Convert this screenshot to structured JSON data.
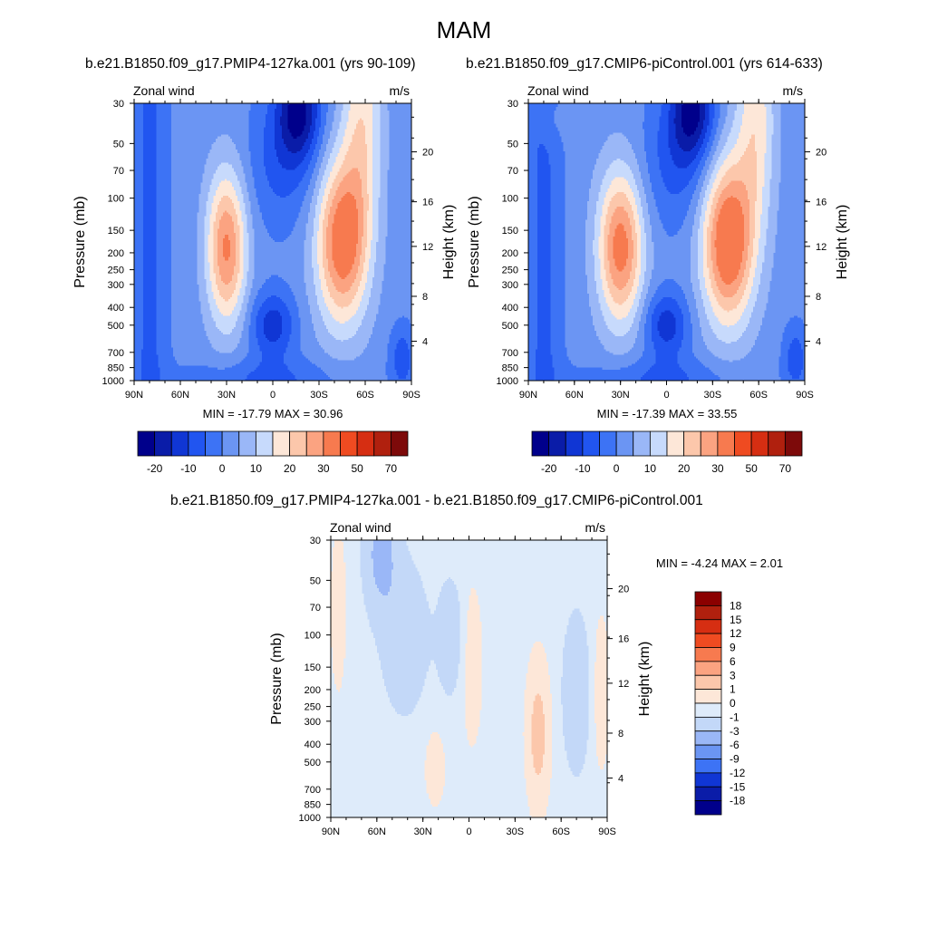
{
  "figure": {
    "season": "MAM"
  },
  "chart_data": [
    {
      "type": "heatmap",
      "title": "b.e21.B1850.f09_g17.PMIP4-127ka.001 (yrs 90-109)",
      "left_label": "Zonal wind",
      "right_label": "m/s",
      "ylabel": "Pressure (mb)",
      "y2label": "Height (km)",
      "x_ticks": [
        "90N",
        "60N",
        "30N",
        "0",
        "30S",
        "60S",
        "90S"
      ],
      "y_ticks": [
        "30",
        "50",
        "70",
        "100",
        "150",
        "200",
        "250",
        "300",
        "400",
        "500",
        "700",
        "850",
        "1000"
      ],
      "y2_ticks": [
        "4",
        "8",
        "12",
        "16",
        "20"
      ],
      "stats": "MIN = -17.79  MAX =  30.96",
      "colorbar_labels": [
        "-20",
        "-10",
        "0",
        "10",
        "20",
        "30",
        "50",
        "70"
      ],
      "colorbar_colors": [
        "#00008b",
        "#0a1ca8",
        "#1036d4",
        "#2155f0",
        "#3d73f5",
        "#6b95f3",
        "#9ab7f7",
        "#c7dafc",
        "#fde7d8",
        "#fcc7ab",
        "#fba381",
        "#f77a4f",
        "#ef4b21",
        "#d62e12",
        "#b0200e",
        "#7d0a0a"
      ],
      "min": -17.79,
      "max": 30.96
    },
    {
      "type": "heatmap",
      "title": "b.e21.B1850.f09_g17.CMIP6-piControl.001 (yrs 614-633)",
      "left_label": "Zonal wind",
      "right_label": "m/s",
      "ylabel": "Pressure (mb)",
      "y2label": "Height (km)",
      "x_ticks": [
        "90N",
        "60N",
        "30N",
        "0",
        "30S",
        "60S",
        "90S"
      ],
      "y_ticks": [
        "30",
        "50",
        "70",
        "100",
        "150",
        "200",
        "250",
        "300",
        "400",
        "500",
        "700",
        "850",
        "1000"
      ],
      "y2_ticks": [
        "4",
        "8",
        "12",
        "16",
        "20"
      ],
      "stats": "MIN = -17.39  MAX =  33.55",
      "colorbar_labels": [
        "-20",
        "-10",
        "0",
        "10",
        "20",
        "30",
        "50",
        "70"
      ],
      "colorbar_colors": [
        "#00008b",
        "#0a1ca8",
        "#1036d4",
        "#2155f0",
        "#3d73f5",
        "#6b95f3",
        "#9ab7f7",
        "#c7dafc",
        "#fde7d8",
        "#fcc7ab",
        "#fba381",
        "#f77a4f",
        "#ef4b21",
        "#d62e12",
        "#b0200e",
        "#7d0a0a"
      ],
      "min": -17.39,
      "max": 33.55
    },
    {
      "type": "heatmap",
      "title": "b.e21.B1850.f09_g17.PMIP4-127ka.001 - b.e21.B1850.f09_g17.CMIP6-piControl.001",
      "left_label": "Zonal wind",
      "right_label": "m/s",
      "ylabel": "Pressure (mb)",
      "y2label": "Height (km)",
      "x_ticks": [
        "90N",
        "60N",
        "30N",
        "0",
        "30S",
        "60S",
        "90S"
      ],
      "y_ticks": [
        "30",
        "50",
        "70",
        "100",
        "150",
        "200",
        "250",
        "300",
        "400",
        "500",
        "700",
        "850",
        "1000"
      ],
      "y2_ticks": [
        "4",
        "8",
        "12",
        "16",
        "20"
      ],
      "stats": "MIN = -4.24  MAX =   2.01",
      "colorbar_labels": [
        "18",
        "15",
        "12",
        "9",
        "6",
        "3",
        "1",
        "0",
        "-1",
        "-3",
        "-6",
        "-9",
        "-12",
        "-15",
        "-18"
      ],
      "colorbar_colors": [
        "#8b0000",
        "#b0200e",
        "#d62e12",
        "#ef4b21",
        "#f77a4f",
        "#fba381",
        "#fcc7ab",
        "#fde7d8",
        "#deebfa",
        "#c3d8f8",
        "#9ab7f7",
        "#6b95f3",
        "#3d73f5",
        "#1036d4",
        "#0a1ca8",
        "#00008b"
      ],
      "min": -4.24,
      "max": 2.01
    }
  ]
}
